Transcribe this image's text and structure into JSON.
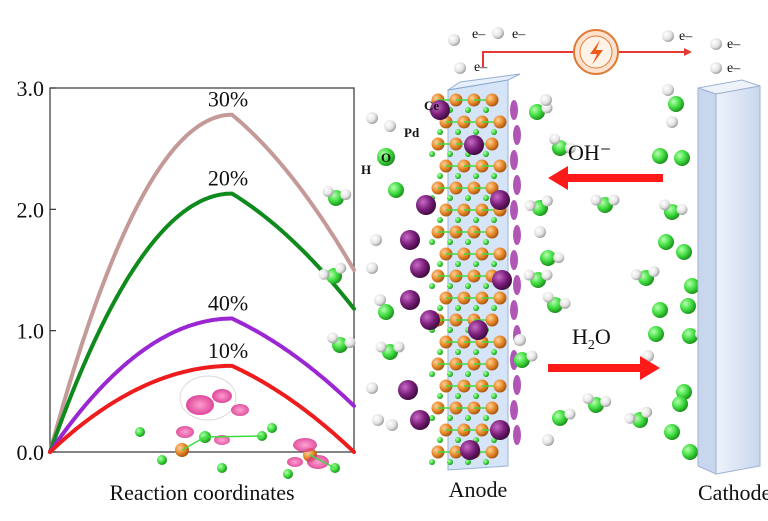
{
  "chart_data": {
    "type": "line",
    "title": "",
    "xlabel": "Reaction coordinates",
    "ylabel": "",
    "ylim": [
      0,
      3.0
    ],
    "yticks": [
      "0.0",
      "1.0",
      "2.0",
      "3.0"
    ],
    "grid": false,
    "series": [
      {
        "name": "30%",
        "peak": 2.78,
        "end": 1.5,
        "color": "#c49a98"
      },
      {
        "name": "20%",
        "peak": 2.13,
        "end": 1.18,
        "color": "#0f8a1c"
      },
      {
        "name": "40%",
        "peak": 1.1,
        "end": 0.38,
        "color": "#9b27d3"
      },
      {
        "name": "10%",
        "peak": 0.71,
        "end": 0.0,
        "color": "#ee1c1c"
      }
    ]
  },
  "labels": {
    "electron": "e–",
    "hydroxide": "OH⁻",
    "water_main": "H",
    "water_sub": "2",
    "water_end": "O",
    "anode": "Anode",
    "cathode": "Cathode",
    "ce": "Ce",
    "pd": "Pd",
    "h": "H",
    "o": "O"
  },
  "colors": {
    "circuit": "#e53935",
    "arrow": "#ff1a1a",
    "oxygen": "#3fdc3f",
    "hydrogen": "#e6e6e6",
    "ce_atom": "#7a1f7a",
    "pd_atom": "#e8892a",
    "cathode_plate": "#dfe8f6"
  }
}
